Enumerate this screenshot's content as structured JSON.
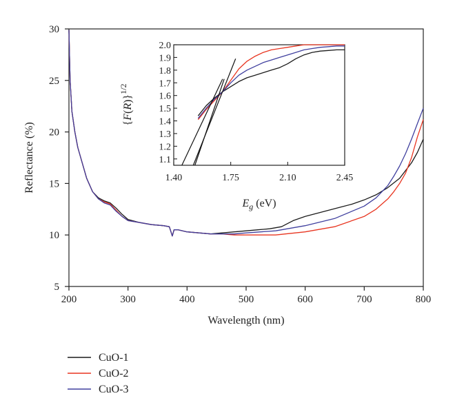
{
  "chart_data": [
    {
      "type": "line",
      "xlabel": "Wavelength (nm)",
      "ylabel": "Reflectance (%)",
      "xlim": [
        200,
        800
      ],
      "ylim": [
        5,
        30
      ],
      "xticks": [
        200,
        300,
        400,
        500,
        600,
        700,
        800
      ],
      "yticks": [
        5,
        10,
        15,
        20,
        25,
        30
      ],
      "grid": false,
      "legend_position": "bottom-left, below plot",
      "series": [
        {
          "name": "CuO-1",
          "color": "#1a1a1a",
          "x": [
            200,
            202,
            205,
            210,
            215,
            220,
            230,
            240,
            250,
            260,
            270,
            280,
            290,
            300,
            320,
            340,
            360,
            370,
            375,
            378,
            385,
            400,
            420,
            440,
            460,
            480,
            500,
            520,
            540,
            560,
            570,
            580,
            600,
            620,
            640,
            660,
            680,
            700,
            720,
            740,
            760,
            780,
            790,
            800
          ],
          "y": [
            29.9,
            25.0,
            22.0,
            20.0,
            18.5,
            17.5,
            15.5,
            14.2,
            13.6,
            13.3,
            13.1,
            12.6,
            12.0,
            11.5,
            11.2,
            11.0,
            10.9,
            10.8,
            9.9,
            10.5,
            10.5,
            10.3,
            10.2,
            10.1,
            10.2,
            10.3,
            10.4,
            10.5,
            10.6,
            10.8,
            11.1,
            11.4,
            11.8,
            12.1,
            12.4,
            12.7,
            13.0,
            13.4,
            13.9,
            14.6,
            15.5,
            17.0,
            18.0,
            19.3
          ]
        },
        {
          "name": "CuO-2",
          "color": "#e8341f",
          "x": [
            200,
            202,
            205,
            210,
            215,
            220,
            230,
            240,
            250,
            260,
            270,
            280,
            290,
            300,
            320,
            340,
            360,
            370,
            375,
            378,
            385,
            400,
            420,
            440,
            460,
            480,
            500,
            550,
            600,
            650,
            700,
            720,
            740,
            750,
            760,
            770,
            780,
            790,
            800
          ],
          "y": [
            29.9,
            25.0,
            22.0,
            20.0,
            18.5,
            17.5,
            15.5,
            14.2,
            13.5,
            13.2,
            13.0,
            12.4,
            11.8,
            11.4,
            11.2,
            11.0,
            10.9,
            10.8,
            9.9,
            10.5,
            10.5,
            10.3,
            10.2,
            10.1,
            10.1,
            10.0,
            10.0,
            10.0,
            10.3,
            10.8,
            11.8,
            12.5,
            13.5,
            14.2,
            15.0,
            16.0,
            17.5,
            19.5,
            21.2
          ]
        },
        {
          "name": "CuO-3",
          "color": "#3f3f9e",
          "x": [
            200,
            202,
            205,
            210,
            215,
            220,
            230,
            240,
            250,
            260,
            270,
            280,
            290,
            300,
            320,
            340,
            360,
            370,
            375,
            378,
            385,
            400,
            420,
            440,
            460,
            480,
            500,
            550,
            600,
            650,
            700,
            720,
            740,
            750,
            760,
            770,
            780,
            790,
            800
          ],
          "y": [
            29.9,
            25.0,
            22.0,
            20.0,
            18.5,
            17.5,
            15.5,
            14.2,
            13.5,
            13.1,
            12.9,
            12.3,
            11.8,
            11.4,
            11.2,
            11.0,
            10.9,
            10.8,
            9.9,
            10.5,
            10.5,
            10.3,
            10.2,
            10.1,
            10.1,
            10.1,
            10.2,
            10.4,
            10.9,
            11.6,
            12.8,
            13.6,
            14.8,
            15.7,
            16.7,
            17.9,
            19.3,
            20.8,
            22.3
          ]
        }
      ]
    },
    {
      "type": "line",
      "xlabel": "E_g (eV)",
      "ylabel": "{F(R)}^1/2",
      "xlim": [
        1.4,
        2.45
      ],
      "ylim": [
        1.05,
        2.0
      ],
      "xticks": [
        "1.40",
        "1.75",
        "2.10",
        "2.45"
      ],
      "yticks": [
        "1.1",
        "1.2",
        "1.3",
        "1.4",
        "1.5",
        "1.6",
        "1.7",
        "1.8",
        "1.9",
        "2.0"
      ],
      "grid": false,
      "series": [
        {
          "color": "#1a1a1a",
          "x": [
            1.55,
            1.6,
            1.65,
            1.7,
            1.75,
            1.8,
            1.85,
            1.9,
            1.95,
            2.0,
            2.05,
            2.1,
            2.15,
            2.2,
            2.25,
            2.3,
            2.35,
            2.4,
            2.45
          ],
          "y": [
            1.44,
            1.52,
            1.58,
            1.63,
            1.67,
            1.71,
            1.74,
            1.76,
            1.78,
            1.8,
            1.82,
            1.85,
            1.89,
            1.92,
            1.94,
            1.95,
            1.955,
            1.96,
            1.96
          ]
        },
        {
          "color": "#e8341f",
          "x": [
            1.55,
            1.6,
            1.65,
            1.7,
            1.75,
            1.8,
            1.85,
            1.9,
            1.95,
            2.0,
            2.05,
            2.1,
            2.15,
            2.2,
            2.25,
            2.3,
            2.35,
            2.4,
            2.45
          ],
          "y": [
            1.41,
            1.49,
            1.56,
            1.63,
            1.72,
            1.81,
            1.87,
            1.91,
            1.94,
            1.96,
            1.97,
            1.98,
            1.99,
            2.0,
            2.0,
            2.0,
            2.0,
            2.0,
            2.0
          ]
        },
        {
          "color": "#3f3f9e",
          "x": [
            1.55,
            1.6,
            1.65,
            1.7,
            1.75,
            1.8,
            1.85,
            1.9,
            1.95,
            2.0,
            2.05,
            2.1,
            2.15,
            2.2,
            2.25,
            2.3,
            2.35,
            2.4,
            2.45
          ],
          "y": [
            1.42,
            1.5,
            1.57,
            1.63,
            1.7,
            1.76,
            1.8,
            1.83,
            1.86,
            1.88,
            1.9,
            1.92,
            1.94,
            1.96,
            1.97,
            1.98,
            1.985,
            1.99,
            1.99
          ]
        }
      ],
      "fit_lines": [
        {
          "x": [
            1.45,
            1.7
          ],
          "y": [
            1.05,
            1.73
          ]
        },
        {
          "x": [
            1.52,
            1.78
          ],
          "y": [
            1.05,
            1.89
          ]
        },
        {
          "x": [
            1.53,
            1.71
          ],
          "y": [
            1.05,
            1.73
          ]
        }
      ]
    }
  ]
}
